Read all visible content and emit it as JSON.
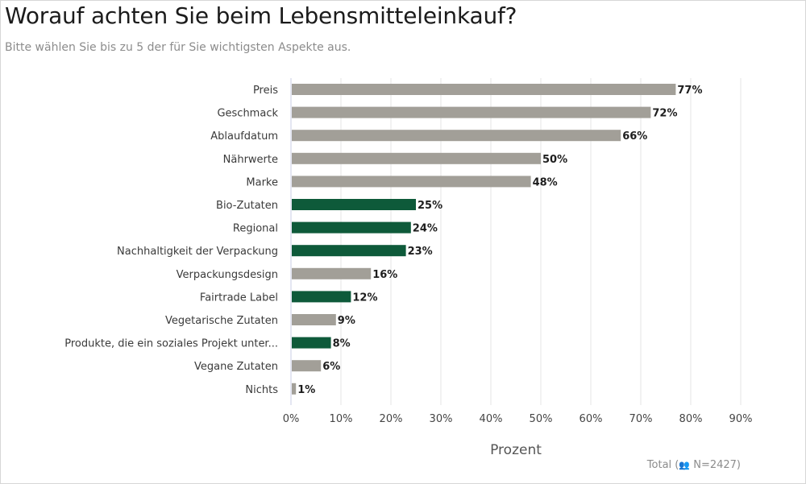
{
  "header": {
    "title": "Worauf achten Sie beim Lebensmitteleinkauf?",
    "subtitle": "Bitte wählen Sie bis zu 5 der für Sie wichtigsten Aspekte aus."
  },
  "footer": {
    "prefix": "Total (",
    "icon": "people-icon",
    "sample": "N=2427",
    "suffix": ")"
  },
  "colors": {
    "gray_bar": "#a29f98",
    "green_bar": "#0e5a3a",
    "grid": "#e6e6e6",
    "axis": "#c9cde6"
  },
  "chart_data": {
    "type": "bar",
    "orientation": "horizontal",
    "title": "Worauf achten Sie beim Lebensmitteleinkauf?",
    "xlabel": "Prozent",
    "xlim": [
      0,
      90
    ],
    "xticks": [
      0,
      10,
      20,
      30,
      40,
      50,
      60,
      70,
      80,
      90
    ],
    "xtick_labels": [
      "0%",
      "10%",
      "20%",
      "30%",
      "40%",
      "50%",
      "60%",
      "70%",
      "80%",
      "90%"
    ],
    "grid": true,
    "categories": [
      "Preis",
      "Geschmack",
      "Ablaufdatum",
      "Nährwerte",
      "Marke",
      "Bio-Zutaten",
      "Regional",
      "Nachhaltigkeit der Verpackung",
      "Verpackungsdesign",
      "Fairtrade Label",
      "Vegetarische Zutaten",
      "Produkte, die ein soziales Projekt unter...",
      "Vegane Zutaten",
      "Nichts"
    ],
    "values": [
      77,
      72,
      66,
      50,
      48,
      25,
      24,
      23,
      16,
      12,
      9,
      8,
      6,
      1
    ],
    "value_labels": [
      "77%",
      "72%",
      "66%",
      "50%",
      "48%",
      "25%",
      "24%",
      "23%",
      "16%",
      "12%",
      "9%",
      "8%",
      "6%",
      "1%"
    ],
    "highlight": [
      false,
      false,
      false,
      false,
      false,
      true,
      true,
      true,
      false,
      true,
      false,
      true,
      false,
      false
    ]
  }
}
